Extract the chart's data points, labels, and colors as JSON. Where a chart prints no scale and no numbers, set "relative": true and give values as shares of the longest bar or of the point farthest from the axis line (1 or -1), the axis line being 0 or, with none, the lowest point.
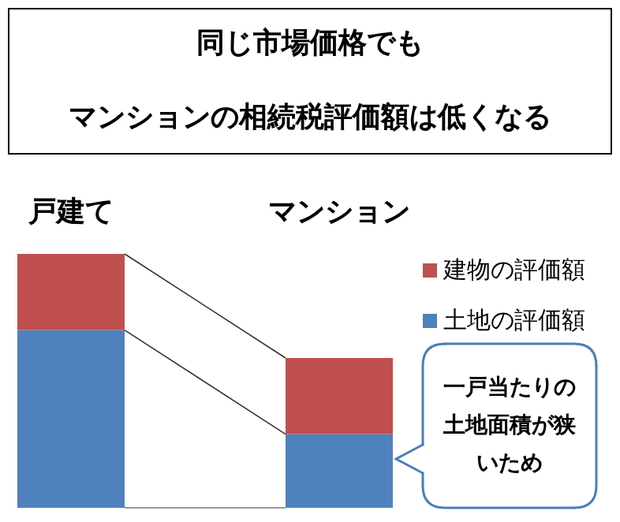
{
  "chart_data": {
    "type": "bar",
    "stacked": true,
    "relative": true,
    "title": "同じ市場価格でも",
    "subtitle": "マンションの相続税評価額は低くなる",
    "categories": [
      "戸建て",
      "マンション"
    ],
    "series": [
      {
        "name": "土地の評価額",
        "color": "#4f81bd",
        "values": [
          0.7,
          0.29
        ]
      },
      {
        "name": "建物の評価額",
        "color": "#c0504d",
        "values": [
          0.3,
          0.3
        ]
      }
    ],
    "legend": "right",
    "annotations": [
      "一戸当たりの土地面積が狭いため"
    ]
  }
}
